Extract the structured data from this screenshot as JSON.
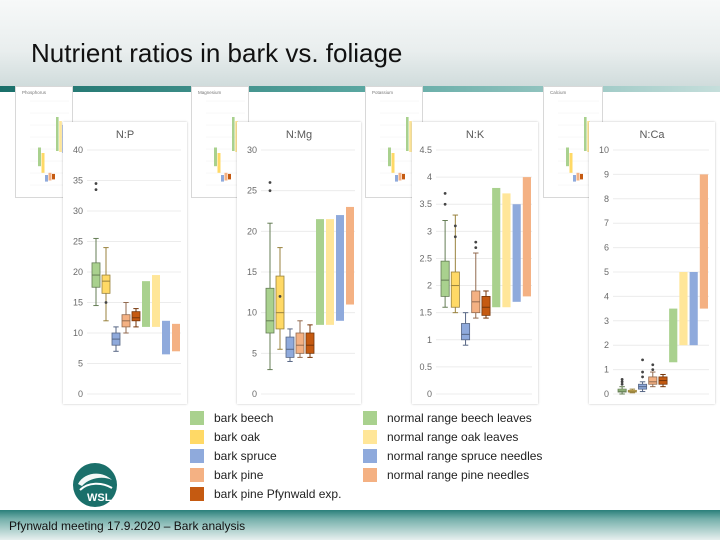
{
  "slide": {
    "title": "Nutrient ratios in bark vs. foliage",
    "footer": "Pfynwald meeting 17.9.2020 – Bark analysis",
    "logo_text": "WSL"
  },
  "colors": {
    "bark_beech": "#a9d18e",
    "bark_oak": "#ffd966",
    "bark_spruce": "#8faadc",
    "bark_pine": "#f4b183",
    "bark_pine_exp": "#c55a11",
    "normal_beech": "#a9d18e",
    "normal_oak": "#ffe699",
    "normal_spruce": "#8faadc",
    "normal_pine": "#f4b183",
    "accent": "#1a6f6a"
  },
  "mini_charts": [
    {
      "title": "Phosphorus"
    },
    {
      "title": "Magnesium"
    },
    {
      "title": "Potassium"
    },
    {
      "title": "Calcium"
    }
  ],
  "legend": {
    "bark": [
      "bark beech",
      "bark oak",
      "bark spruce",
      "bark pine",
      "bark pine Pfynwald exp."
    ],
    "normal": [
      "normal range beech leaves",
      "normal range oak leaves",
      "normal range spruce needles",
      "normal range pine needles"
    ]
  },
  "chart_data": [
    {
      "type": "box",
      "title": "N:P",
      "ylim": [
        0,
        40
      ],
      "yticks": [
        "0",
        "5",
        "10",
        "15",
        "20",
        "25",
        "30",
        "35",
        "40"
      ],
      "boxes": [
        {
          "name": "bark beech",
          "whisker": [
            14.5,
            25.5
          ],
          "q1": 17.5,
          "median": 19.5,
          "q3": 21.5,
          "outliers": [
            33.5,
            34.5
          ]
        },
        {
          "name": "bark oak",
          "whisker": [
            12,
            24
          ],
          "q1": 16.5,
          "median": 18.5,
          "q3": 19.5,
          "outliers": [
            15
          ]
        },
        {
          "name": "bark spruce",
          "whisker": [
            7,
            11
          ],
          "q1": 8,
          "median": 9,
          "q3": 10,
          "outliers": []
        },
        {
          "name": "bark pine",
          "whisker": [
            10,
            15
          ],
          "q1": 11,
          "median": 12,
          "q3": 13,
          "outliers": []
        },
        {
          "name": "bark pine Pfynwald exp.",
          "whisker": [
            11,
            14
          ],
          "q1": 12,
          "median": 12.5,
          "q3": 13.5,
          "outliers": []
        }
      ],
      "ranges": [
        {
          "name": "normal range beech leaves",
          "range": [
            11,
            18.5
          ]
        },
        {
          "name": "normal range oak leaves",
          "range": [
            11,
            19.5
          ]
        },
        {
          "name": "normal range spruce needles",
          "range": [
            6.5,
            12
          ]
        },
        {
          "name": "normal range pine needles",
          "range": [
            7,
            11.5
          ]
        }
      ]
    },
    {
      "type": "box",
      "title": "N:Mg",
      "ylim": [
        0,
        30
      ],
      "yticks": [
        "0",
        "5",
        "10",
        "15",
        "20",
        "25",
        "30"
      ],
      "boxes": [
        {
          "name": "bark beech",
          "whisker": [
            3,
            21
          ],
          "q1": 7.5,
          "median": 9,
          "q3": 13,
          "outliers": [
            25,
            26
          ]
        },
        {
          "name": "bark oak",
          "whisker": [
            5.5,
            18
          ],
          "q1": 8,
          "median": 10,
          "q3": 14.5,
          "outliers": [
            12
          ]
        },
        {
          "name": "bark spruce",
          "whisker": [
            4,
            8
          ],
          "q1": 4.5,
          "median": 5.5,
          "q3": 7,
          "outliers": []
        },
        {
          "name": "bark pine",
          "whisker": [
            4.5,
            9
          ],
          "q1": 5,
          "median": 6,
          "q3": 7.5,
          "outliers": []
        },
        {
          "name": "bark pine Pfynwald exp.",
          "whisker": [
            4.5,
            8.5
          ],
          "q1": 5,
          "median": 6,
          "q3": 7.5,
          "outliers": []
        }
      ],
      "ranges": [
        {
          "name": "normal range beech leaves",
          "range": [
            8.5,
            21.5
          ]
        },
        {
          "name": "normal range oak leaves",
          "range": [
            8.5,
            21.5
          ]
        },
        {
          "name": "normal range spruce needles",
          "range": [
            9,
            22
          ]
        },
        {
          "name": "normal range pine needles",
          "range": [
            11,
            23
          ]
        }
      ]
    },
    {
      "type": "box",
      "title": "N:K",
      "ylim": [
        0,
        4.5
      ],
      "yticks": [
        "0",
        "0.5",
        "1",
        "1.5",
        "2",
        "2.5",
        "3",
        "3.5",
        "4",
        "4.5"
      ],
      "boxes": [
        {
          "name": "bark beech",
          "whisker": [
            1.6,
            3.2
          ],
          "q1": 1.8,
          "median": 2.1,
          "q3": 2.45,
          "outliers": [
            3.7,
            3.5
          ]
        },
        {
          "name": "bark oak",
          "whisker": [
            1.5,
            3.3
          ],
          "q1": 1.6,
          "median": 2.0,
          "q3": 2.25,
          "outliers": [
            3.1,
            2.9
          ]
        },
        {
          "name": "bark spruce",
          "whisker": [
            0.9,
            1.5
          ],
          "q1": 1.0,
          "median": 1.1,
          "q3": 1.3,
          "outliers": []
        },
        {
          "name": "bark pine",
          "whisker": [
            1.4,
            2.6
          ],
          "q1": 1.5,
          "median": 1.7,
          "q3": 1.9,
          "outliers": [
            2.7,
            2.8
          ]
        },
        {
          "name": "bark pine Pfynwald exp.",
          "whisker": [
            1.4,
            1.9
          ],
          "q1": 1.45,
          "median": 1.6,
          "q3": 1.8,
          "outliers": []
        }
      ],
      "ranges": [
        {
          "name": "normal range beech leaves",
          "range": [
            1.6,
            3.8
          ]
        },
        {
          "name": "normal range oak leaves",
          "range": [
            1.6,
            3.7
          ]
        },
        {
          "name": "normal range spruce needles",
          "range": [
            1.7,
            3.5
          ]
        },
        {
          "name": "normal range pine needles",
          "range": [
            1.8,
            4.0
          ]
        }
      ]
    },
    {
      "type": "box",
      "title": "N:Ca",
      "ylim": [
        0,
        10
      ],
      "yticks": [
        "0",
        "1",
        "2",
        "3",
        "4",
        "5",
        "6",
        "7",
        "8",
        "9",
        "10"
      ],
      "boxes": [
        {
          "name": "bark beech",
          "whisker": [
            0,
            0.3
          ],
          "q1": 0.08,
          "median": 0.12,
          "q3": 0.2,
          "outliers": [
            0.5,
            0.6,
            0.4
          ]
        },
        {
          "name": "bark oak",
          "whisker": [
            0.05,
            0.2
          ],
          "q1": 0.08,
          "median": 0.1,
          "q3": 0.15,
          "outliers": []
        },
        {
          "name": "bark spruce",
          "whisker": [
            0.1,
            0.5
          ],
          "q1": 0.2,
          "median": 0.3,
          "q3": 0.4,
          "outliers": [
            0.7,
            0.9,
            1.4
          ]
        },
        {
          "name": "bark pine",
          "whisker": [
            0.3,
            0.9
          ],
          "q1": 0.4,
          "median": 0.5,
          "q3": 0.7,
          "outliers": [
            1.0,
            1.2
          ]
        },
        {
          "name": "bark pine Pfynwald exp.",
          "whisker": [
            0.3,
            0.8
          ],
          "q1": 0.4,
          "median": 0.55,
          "q3": 0.7,
          "outliers": []
        }
      ],
      "ranges": [
        {
          "name": "normal range beech leaves",
          "range": [
            1.3,
            3.5
          ]
        },
        {
          "name": "normal range oak leaves",
          "range": [
            2.0,
            5.0
          ]
        },
        {
          "name": "normal range spruce needles",
          "range": [
            2.0,
            5.0
          ]
        },
        {
          "name": "normal range pine needles",
          "range": [
            3.5,
            9.0
          ]
        }
      ]
    }
  ]
}
